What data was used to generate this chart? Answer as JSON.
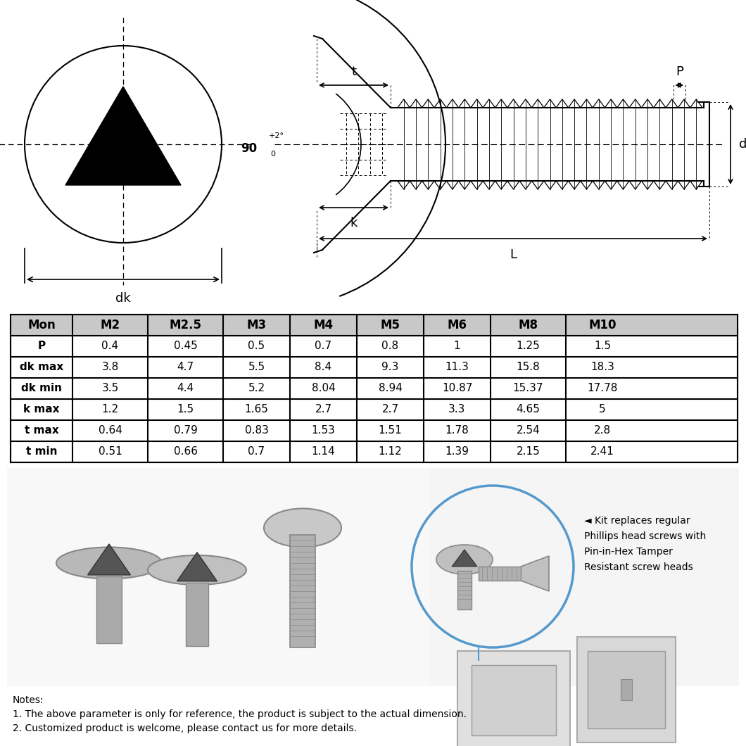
{
  "bg_color": "#ffffff",
  "table_headers": [
    "Mon",
    "M2",
    "M2.5",
    "M3",
    "M4",
    "M5",
    "M6",
    "M8",
    "M10"
  ],
  "table_rows": [
    [
      "P",
      "0.4",
      "0.45",
      "0.5",
      "0.7",
      "0.8",
      "1",
      "1.25",
      "1.5"
    ],
    [
      "dk max",
      "3.8",
      "4.7",
      "5.5",
      "8.4",
      "9.3",
      "11.3",
      "15.8",
      "18.3"
    ],
    [
      "dk min",
      "3.5",
      "4.4",
      "5.2",
      "8.04",
      "8.94",
      "10.87",
      "15.37",
      "17.78"
    ],
    [
      "k max",
      "1.2",
      "1.5",
      "1.65",
      "2.7",
      "2.7",
      "3.3",
      "4.65",
      "5"
    ],
    [
      "t max",
      "0.64",
      "0.79",
      "0.83",
      "1.53",
      "1.51",
      "1.78",
      "2.54",
      "2.8"
    ],
    [
      "t min",
      "0.51",
      "0.66",
      "0.7",
      "1.14",
      "1.12",
      "1.39",
      "2.15",
      "2.41"
    ]
  ],
  "notes": [
    "Notes:",
    "1. The above parameter is only for reference, the product is subject to the actual dimension.",
    "2. Customized product is welcome, please contact us for more details."
  ],
  "kit_text_line1": "◄ Kit replaces regular",
  "kit_text_line2": "Phillips head screws with",
  "kit_text_line3": "Pin-in-Hex Tamper",
  "kit_text_line4": "Resistant screw heads"
}
